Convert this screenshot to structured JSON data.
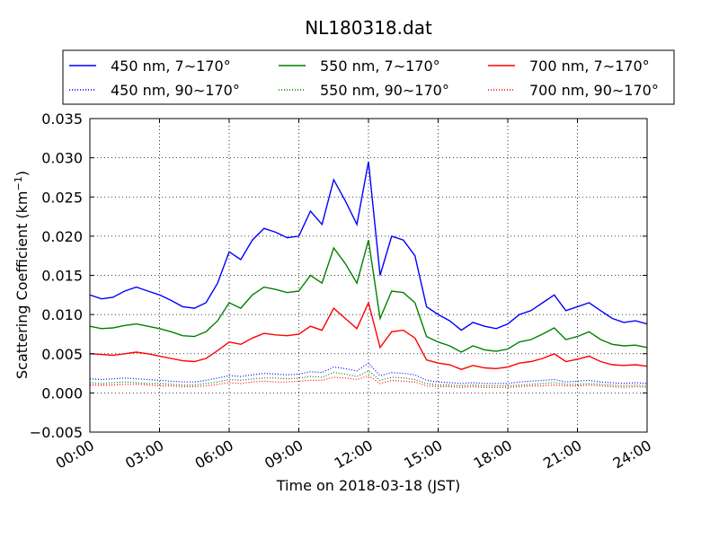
{
  "chart_data": {
    "type": "line",
    "title": "NL180318.dat",
    "xlabel": "Time on 2018-03-18 (JST)",
    "ylabel_main": "Scattering Coefficient (km",
    "ylabel_sup": "−1",
    "ylabel_tail": ")",
    "xlim": [
      0,
      24
    ],
    "ylim": [
      -0.005,
      0.035
    ],
    "grid": true,
    "legend_position": "top",
    "x_unit": "hours (JST)",
    "x_ticks": [
      0,
      3,
      6,
      9,
      12,
      15,
      18,
      21,
      24
    ],
    "x_tick_labels": [
      "00:00",
      "03:00",
      "06:00",
      "09:00",
      "12:00",
      "15:00",
      "18:00",
      "21:00",
      "24:00"
    ],
    "y_ticks": [
      -0.005,
      0.0,
      0.005,
      0.01,
      0.015,
      0.02,
      0.025,
      0.03,
      0.035
    ],
    "y_tick_labels": [
      "−0.005",
      "0.000",
      "0.005",
      "0.010",
      "0.015",
      "0.020",
      "0.025",
      "0.030",
      "0.035"
    ],
    "x": [
      0,
      0.5,
      1,
      1.5,
      2,
      2.5,
      3,
      3.5,
      4,
      4.5,
      5,
      5.5,
      6,
      6.5,
      7,
      7.5,
      8,
      8.5,
      9,
      9.5,
      10,
      10.5,
      11,
      11.5,
      12,
      12.5,
      13,
      13.5,
      14,
      14.5,
      15,
      15.5,
      16,
      16.5,
      17,
      17.5,
      18,
      18.5,
      19,
      19.5,
      20,
      20.5,
      21,
      21.5,
      22,
      22.5,
      23,
      23.5,
      24
    ],
    "series": [
      {
        "name": "450 nm, 7∼170°",
        "color": "#0000ff",
        "style": "solid",
        "values": [
          0.0125,
          0.012,
          0.0122,
          0.013,
          0.0135,
          0.013,
          0.0125,
          0.0118,
          0.011,
          0.0108,
          0.0115,
          0.014,
          0.018,
          0.017,
          0.0195,
          0.021,
          0.0205,
          0.0198,
          0.02,
          0.0232,
          0.0215,
          0.0272,
          0.0245,
          0.0215,
          0.0295,
          0.015,
          0.02,
          0.0195,
          0.0175,
          0.011,
          0.01,
          0.0092,
          0.008,
          0.009,
          0.0085,
          0.0082,
          0.0088,
          0.01,
          0.0105,
          0.0115,
          0.0125,
          0.0105,
          0.011,
          0.0115,
          0.0105,
          0.0095,
          0.009,
          0.0092,
          0.0088
        ]
      },
      {
        "name": "450 nm, 90∼170°",
        "color": "#0000ff",
        "style": "dotted",
        "values": [
          0.0018,
          0.0017,
          0.0018,
          0.0019,
          0.0018,
          0.0017,
          0.0016,
          0.0015,
          0.0014,
          0.0014,
          0.0016,
          0.0019,
          0.0022,
          0.0021,
          0.0023,
          0.0025,
          0.0024,
          0.0023,
          0.0024,
          0.0027,
          0.0026,
          0.0033,
          0.0031,
          0.0028,
          0.0038,
          0.0022,
          0.0026,
          0.0025,
          0.0023,
          0.0016,
          0.0014,
          0.0013,
          0.0012,
          0.0013,
          0.0012,
          0.0012,
          0.0012,
          0.0014,
          0.0015,
          0.0016,
          0.0017,
          0.0014,
          0.0015,
          0.0016,
          0.0014,
          0.0013,
          0.0012,
          0.0013,
          0.0012
        ]
      },
      {
        "name": "550 nm, 7∼170°",
        "color": "#008000",
        "style": "solid",
        "values": [
          0.0085,
          0.0082,
          0.0083,
          0.0086,
          0.0088,
          0.0085,
          0.0082,
          0.0078,
          0.0073,
          0.0072,
          0.0078,
          0.0092,
          0.0115,
          0.0108,
          0.0125,
          0.0135,
          0.0132,
          0.0128,
          0.013,
          0.015,
          0.014,
          0.0185,
          0.0165,
          0.014,
          0.0195,
          0.0095,
          0.013,
          0.0128,
          0.0115,
          0.0072,
          0.0065,
          0.006,
          0.0052,
          0.006,
          0.0055,
          0.0053,
          0.0056,
          0.0065,
          0.0068,
          0.0075,
          0.0083,
          0.0068,
          0.0072,
          0.0078,
          0.0068,
          0.0062,
          0.006,
          0.0061,
          0.0058
        ]
      },
      {
        "name": "550 nm, 90∼170°",
        "color": "#008000",
        "style": "dotted",
        "values": [
          0.0013,
          0.0012,
          0.0013,
          0.0014,
          0.0013,
          0.0012,
          0.0012,
          0.0011,
          0.001,
          0.001,
          0.0012,
          0.0014,
          0.0017,
          0.0016,
          0.0018,
          0.0019,
          0.0019,
          0.0018,
          0.0019,
          0.0021,
          0.002,
          0.0026,
          0.0024,
          0.0021,
          0.0028,
          0.0016,
          0.002,
          0.0019,
          0.0017,
          0.0012,
          0.001,
          0.001,
          0.0009,
          0.001,
          0.0009,
          0.0009,
          0.0009,
          0.001,
          0.0011,
          0.0012,
          0.0013,
          0.0011,
          0.0011,
          0.0012,
          0.0011,
          0.001,
          0.0009,
          0.001,
          0.0009
        ]
      },
      {
        "name": "700 nm, 7∼170°",
        "color": "#ff0000",
        "style": "solid",
        "values": [
          0.005,
          0.0049,
          0.0048,
          0.005,
          0.0052,
          0.005,
          0.0047,
          0.0044,
          0.0041,
          0.004,
          0.0044,
          0.0054,
          0.0065,
          0.0062,
          0.007,
          0.0076,
          0.0074,
          0.0073,
          0.0075,
          0.0085,
          0.008,
          0.0108,
          0.0095,
          0.0082,
          0.0115,
          0.0058,
          0.0078,
          0.008,
          0.007,
          0.0042,
          0.0038,
          0.0036,
          0.003,
          0.0035,
          0.0032,
          0.0031,
          0.0033,
          0.0038,
          0.004,
          0.0044,
          0.005,
          0.004,
          0.0043,
          0.0047,
          0.004,
          0.0036,
          0.0035,
          0.0036,
          0.0034
        ]
      },
      {
        "name": "700 nm, 90∼170°",
        "color": "#ff0000",
        "style": "dotted",
        "values": [
          0.001,
          0.001,
          0.001,
          0.0011,
          0.0011,
          0.001,
          0.0009,
          0.0009,
          0.0008,
          0.0008,
          0.0009,
          0.0011,
          0.0013,
          0.0012,
          0.0014,
          0.0015,
          0.0014,
          0.0014,
          0.0015,
          0.0016,
          0.0016,
          0.002,
          0.0019,
          0.0017,
          0.0022,
          0.0012,
          0.0016,
          0.0015,
          0.0014,
          0.0009,
          0.0008,
          0.0008,
          0.0007,
          0.0008,
          0.0007,
          0.0007,
          0.0007,
          0.0008,
          0.0009,
          0.0009,
          0.001,
          0.0009,
          0.0009,
          0.001,
          0.0009,
          0.0008,
          0.0007,
          0.0008,
          0.0007
        ]
      }
    ]
  }
}
